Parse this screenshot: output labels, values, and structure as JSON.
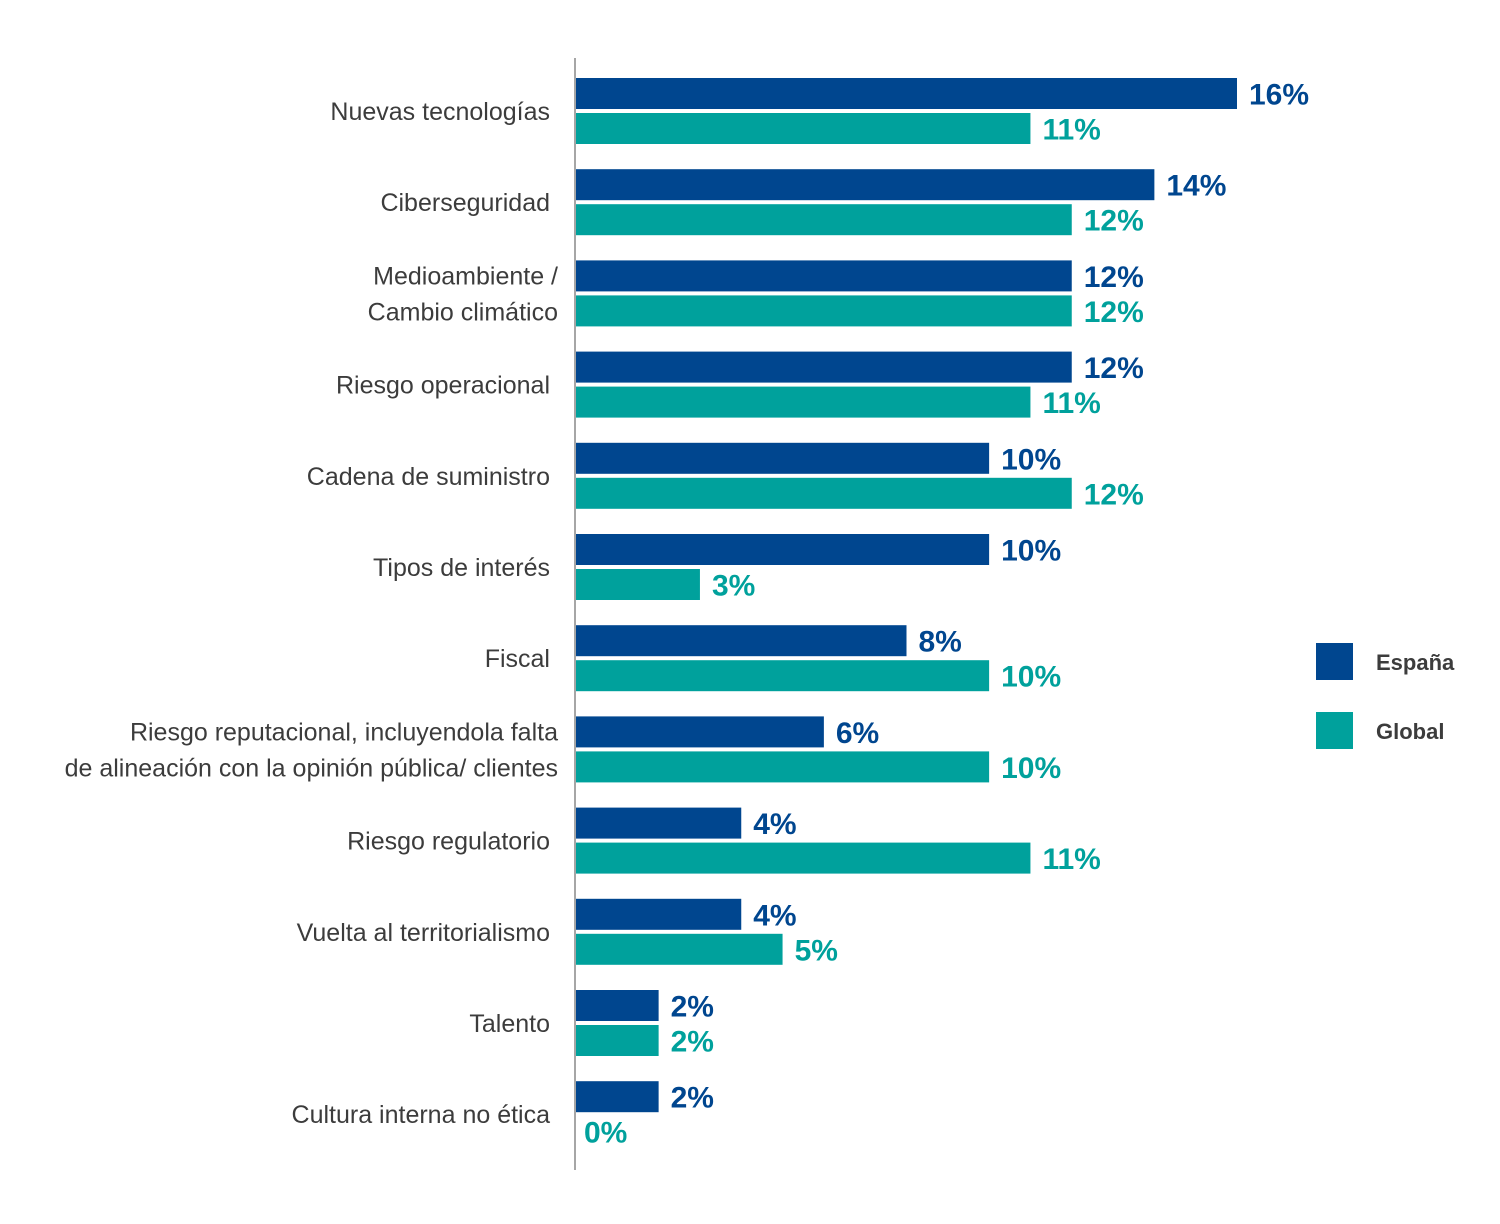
{
  "chart_data": {
    "type": "bar",
    "orientation": "horizontal",
    "title": "",
    "xlabel": "",
    "ylabel": "",
    "xlim": [
      0,
      16
    ],
    "grid": false,
    "legend_position": "right",
    "value_format": "percent",
    "categories": [
      [
        "Nuevas tecnologías"
      ],
      [
        "Ciberseguridad"
      ],
      [
        "Medioambiente /",
        "Cambio climático"
      ],
      [
        "Riesgo operacional"
      ],
      [
        "Cadena de suministro"
      ],
      [
        "Tipos de interés"
      ],
      [
        "Fiscal"
      ],
      [
        "Riesgo reputacional, incluyendola falta",
        "de alineación con la opinión pública/ clientes"
      ],
      [
        "Riesgo regulatorio"
      ],
      [
        "Vuelta al territorialismo"
      ],
      [
        "Talento"
      ],
      [
        "Cultura interna no ética"
      ]
    ],
    "series": [
      {
        "name": "España",
        "color": "#00468f",
        "values": [
          16,
          14,
          12,
          12,
          10,
          10,
          8,
          6,
          4,
          4,
          2,
          2
        ]
      },
      {
        "name": "Global",
        "color": "#00a19c",
        "values": [
          11,
          12,
          12,
          11,
          12,
          3,
          10,
          10,
          11,
          5,
          2,
          0
        ]
      }
    ]
  }
}
